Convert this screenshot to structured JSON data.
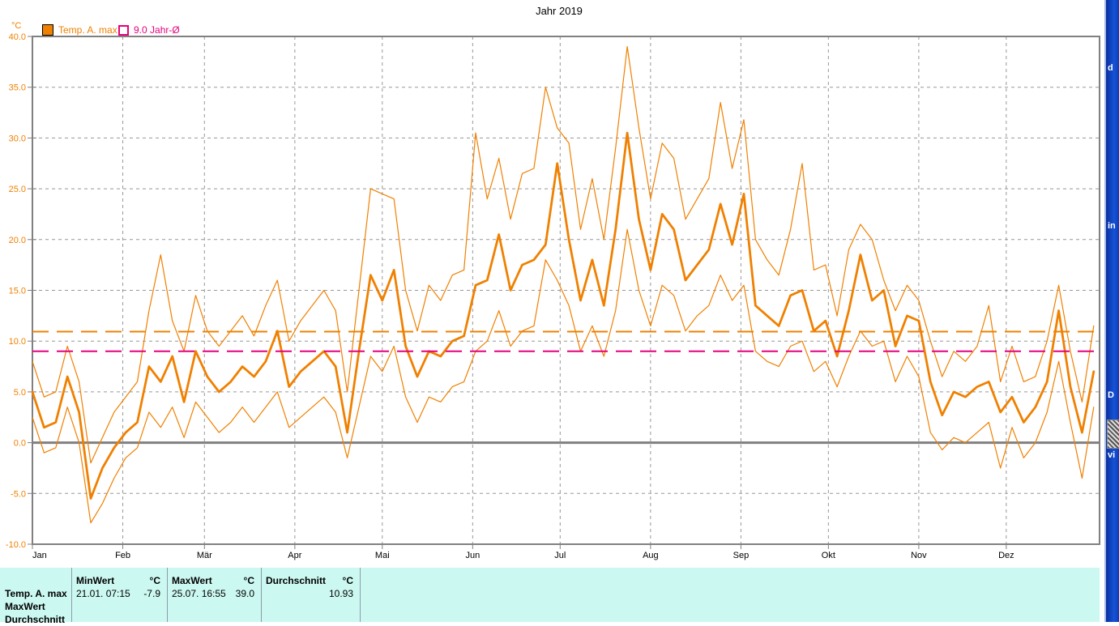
{
  "window": {
    "title": "Jahr 2019"
  },
  "chart_data": {
    "type": "line",
    "title": "Jahr 2019",
    "y_unit": "°C",
    "ylim": [
      -10,
      40
    ],
    "y_ticks": [
      40,
      35,
      30,
      25,
      20,
      15,
      10,
      5,
      0,
      -5,
      -10
    ],
    "y_tick_labels": [
      "40.0",
      "35.0",
      "30.0",
      "25.0",
      "20.0",
      "15.0",
      "10.0",
      "5.0",
      "0.0",
      "-5.0",
      "-10.0"
    ],
    "x_tick_labels": [
      "Jan",
      "Feb",
      "Mär",
      "Apr",
      "Mai",
      "Jun",
      "Jul",
      "Aug",
      "Sep",
      "Okt",
      "Nov",
      "Dez"
    ],
    "month_start_days": [
      0,
      31,
      59,
      90,
      120,
      151,
      181,
      212,
      243,
      273,
      304,
      334
    ],
    "days_in_year": 366,
    "sample_step_days": 4,
    "grid": true,
    "legend_position": "top-left",
    "legend": [
      {
        "label": "Temp. A. max",
        "color": "#F08000",
        "swatch": "filled"
      },
      {
        "label": "9.0 Jahr-Ø",
        "color": "#E6007E",
        "swatch": "open"
      }
    ],
    "series_color": "#F08000",
    "series": [
      {
        "name": "Temp. A. max daily high envelope",
        "width": "thin",
        "values": [
          8,
          4.5,
          5,
          9.5,
          6,
          -2,
          0.5,
          3,
          4.5,
          6,
          13,
          18.5,
          12,
          9,
          14.5,
          11,
          9.5,
          11,
          12.5,
          10.5,
          13.5,
          16,
          10,
          12,
          13.5,
          15,
          13,
          5,
          15,
          25,
          24.5,
          24,
          15,
          11,
          15.5,
          14,
          16.5,
          17,
          30.5,
          24,
          28,
          22,
          26.5,
          27,
          35,
          31,
          29.5,
          21,
          26,
          20,
          29,
          39,
          31,
          24,
          29.5,
          28,
          22,
          24,
          26,
          33.5,
          27,
          31.8,
          20,
          18,
          16.5,
          21,
          27.5,
          17,
          17.5,
          12.5,
          19,
          21.5,
          20,
          16,
          13,
          15.5,
          14,
          10,
          6.5,
          9,
          8,
          9.5,
          13.5,
          6,
          9.5,
          6,
          6.5,
          10,
          15.5,
          9,
          4,
          11.5
        ]
      },
      {
        "name": "Temp. A. max daily low envelope",
        "width": "thin",
        "values": [
          2.5,
          -1,
          -0.5,
          3.5,
          0,
          -7.9,
          -6,
          -3.5,
          -1.5,
          -0.5,
          3,
          1.5,
          3.5,
          0.5,
          4,
          2.5,
          1,
          2,
          3.5,
          2,
          3.5,
          5,
          1.5,
          2.5,
          3.5,
          4.5,
          3,
          -1.5,
          3.5,
          8.5,
          7,
          9.5,
          4.5,
          2,
          4.5,
          4,
          5.5,
          6,
          9,
          10,
          13,
          9.5,
          11,
          11.5,
          18,
          16,
          13.5,
          9,
          11.5,
          8.5,
          13,
          21,
          15,
          11.5,
          15.5,
          14.5,
          11,
          12.5,
          13.5,
          16.5,
          14,
          15.5,
          9,
          8,
          7.5,
          9.5,
          10,
          7,
          8,
          5.5,
          8.5,
          11,
          9.5,
          10,
          6,
          8.5,
          6.5,
          1,
          -0.7,
          0.5,
          0,
          1,
          2,
          -2.5,
          1.5,
          -1.5,
          0,
          3,
          8,
          2,
          -3.5,
          3.5
        ]
      },
      {
        "name": "Temp. A. max daily mean",
        "width": "thick",
        "values": [
          5,
          1.5,
          2,
          6.5,
          3,
          -5.5,
          -2.5,
          -0.5,
          1,
          2,
          7.5,
          6,
          8.5,
          4,
          9,
          6.5,
          5,
          6,
          7.5,
          6.5,
          8,
          11,
          5.5,
          7,
          8,
          9,
          7.5,
          1,
          9,
          16.5,
          14,
          17,
          9.5,
          6.5,
          9,
          8.5,
          10,
          10.5,
          15.5,
          16,
          20.5,
          15,
          17.5,
          18,
          19.5,
          27.5,
          20,
          14,
          18,
          13.5,
          21,
          30.5,
          22,
          17,
          22.5,
          21,
          16,
          17.5,
          19,
          23.5,
          19.5,
          24.5,
          13.5,
          12.5,
          11.5,
          14.5,
          15,
          11,
          12,
          8.5,
          13,
          18.5,
          14,
          15,
          9.5,
          12.5,
          12,
          6,
          2.7,
          5,
          4.5,
          5.5,
          6,
          3,
          4.5,
          2,
          3.5,
          6,
          13,
          5.5,
          1,
          7
        ]
      }
    ],
    "reference_lines": [
      {
        "value": 10.93,
        "color": "#F08000",
        "style": "dashed",
        "meaning": "Durchschnitt 10.93 °C"
      },
      {
        "value": 9.0,
        "color": "#E6007E",
        "style": "dashed",
        "meaning": "9.0 Jahr-Ø"
      }
    ]
  },
  "stats_table": {
    "columns": [
      {
        "title": "MinWert",
        "unit": "°C"
      },
      {
        "title": "MaxWert",
        "unit": "°C"
      },
      {
        "title": "Durchschnitt",
        "unit": "°C"
      }
    ],
    "rows": [
      {
        "label": "Temp. A. max",
        "min_time": "21.01.  07:15",
        "min_value": "-7.9",
        "max_time": "25.07.  16:55",
        "max_value": "39.0",
        "average": "10.93"
      },
      {
        "label": "MaxWert"
      },
      {
        "label": "Durchschnitt"
      }
    ]
  },
  "side_strip": {
    "fragments": [
      {
        "text": "d"
      },
      {
        "text": "in"
      },
      {
        "text": "D"
      },
      {
        "text": "vi"
      }
    ]
  }
}
